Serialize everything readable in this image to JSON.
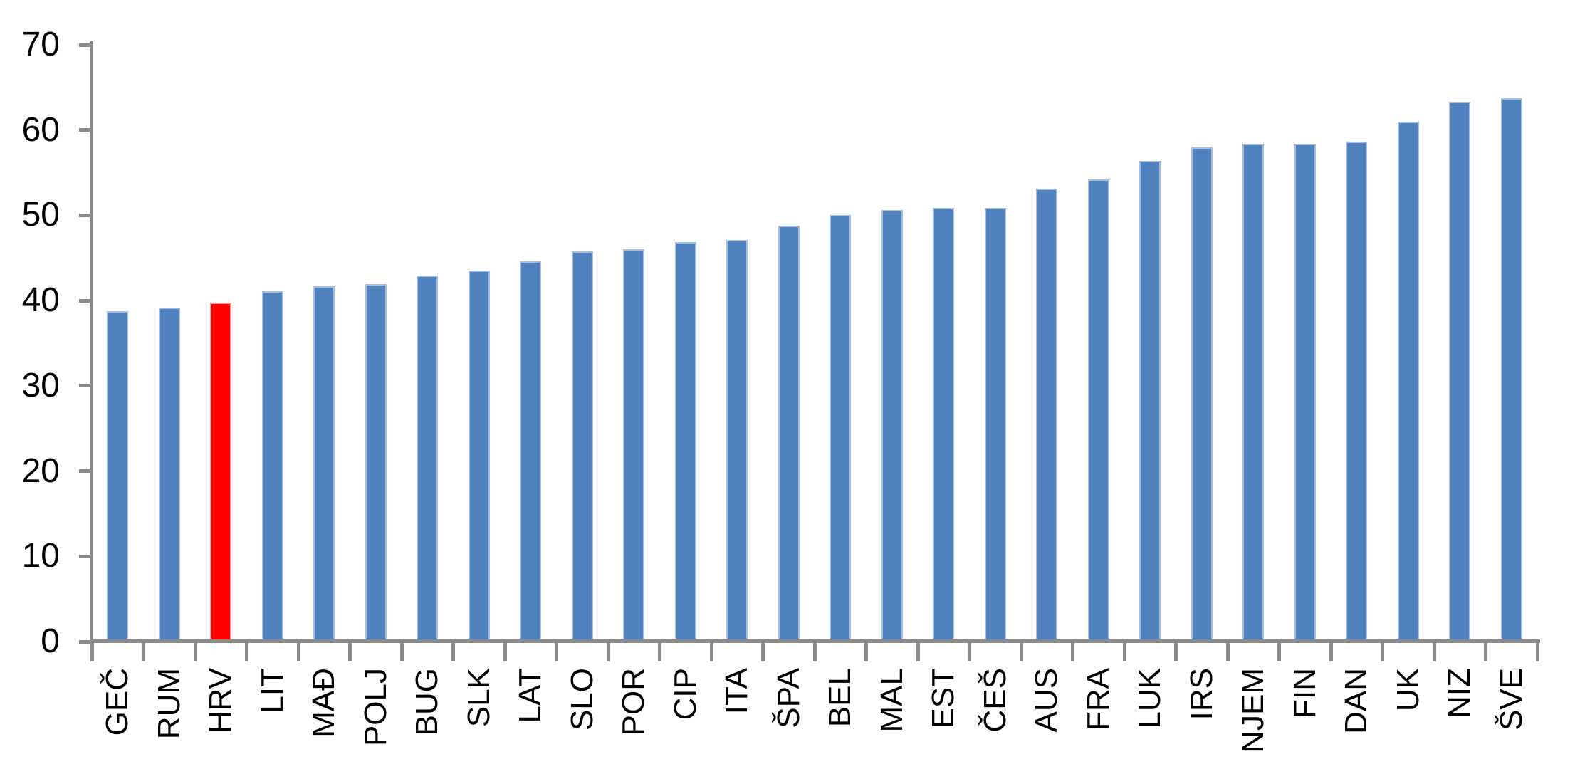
{
  "chart_data": {
    "type": "bar",
    "title": "",
    "xlabel": "",
    "ylabel": "",
    "categories": [
      "GEČ",
      "RUM",
      "HRV",
      "LIT",
      "MAĐ",
      "POLJ",
      "BUG",
      "SLK",
      "LAT",
      "SLO",
      "POR",
      "CIP",
      "ITA",
      "ŠPA",
      "BEL",
      "MAL",
      "EST",
      "ČEŠ",
      "AUS",
      "FRA",
      "LUK",
      "IRS",
      "NJEM",
      "FIN",
      "DAN",
      "UK",
      "NIZ",
      "ŠVE"
    ],
    "values": [
      38.8,
      39.2,
      39.8,
      41.1,
      41.7,
      41.9,
      42.9,
      43.5,
      44.6,
      45.8,
      46.0,
      46.9,
      47.1,
      48.8,
      50.0,
      50.6,
      50.9,
      50.9,
      53.1,
      54.2,
      56.4,
      58.0,
      58.4,
      58.4,
      58.6,
      61.0,
      63.3,
      63.7
    ],
    "highlight_category": "HRV",
    "highlight_index": 2,
    "ylim": [
      0,
      70
    ],
    "y_ticks": [
      0,
      10,
      20,
      30,
      40,
      50,
      60,
      70
    ],
    "grid": false,
    "legend": false,
    "colors": {
      "bar_fill": "#4E81BD",
      "bar_edge": "#A6BFDE",
      "highlight_fill": "#FE0000",
      "highlight_edge": "#FE9B9B",
      "axis": "#8A8A8A",
      "text": "#000000"
    }
  }
}
